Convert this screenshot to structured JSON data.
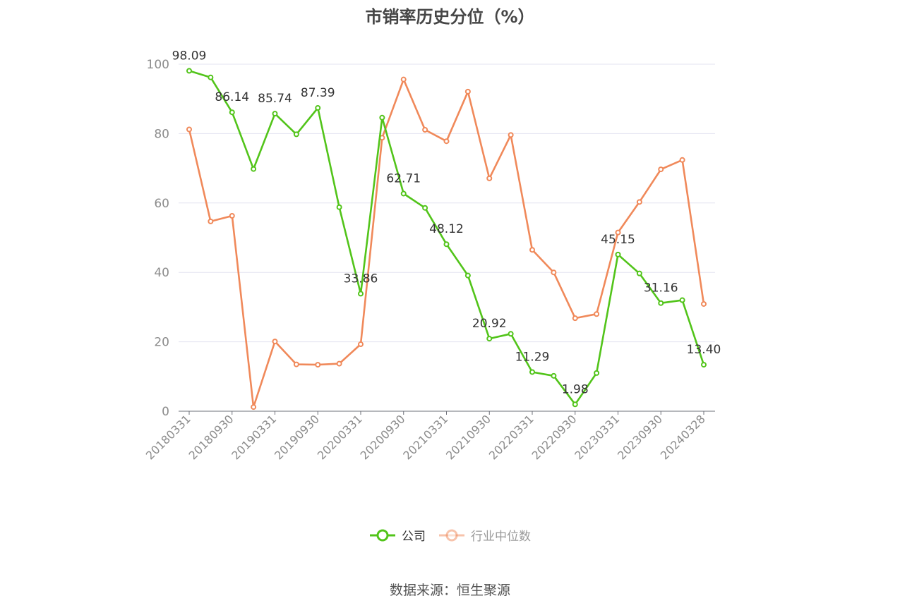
{
  "chart_data": {
    "type": "line",
    "title": "市销率历史分位（%）",
    "x": [
      "20180331",
      "20180630",
      "20180930",
      "20181231",
      "20190331",
      "20190630",
      "20190930",
      "20191231",
      "20200331",
      "20200630",
      "20200930",
      "20201231",
      "20210331",
      "20210630",
      "20210930",
      "20211231",
      "20220331",
      "20220630",
      "20220930",
      "20221231",
      "20230331",
      "20230630",
      "20230930",
      "20231231",
      "20240328"
    ],
    "x_tick_labels": [
      "20180331",
      "20180930",
      "20190331",
      "20190930",
      "20200331",
      "20200930",
      "20210331",
      "20210930",
      "20220331",
      "20220930",
      "20230331",
      "20230930",
      "20240328"
    ],
    "y_ticks": [
      0,
      20,
      40,
      60,
      80,
      100
    ],
    "ylim": [
      0,
      100
    ],
    "grid": true,
    "legend_position": "bottom-center",
    "series": [
      {
        "name": "公司",
        "color": "#52c41a",
        "values": [
          98.09,
          96.2,
          86.14,
          69.8,
          85.74,
          79.8,
          87.39,
          58.8,
          33.86,
          84.6,
          62.71,
          58.6,
          48.12,
          39.1,
          20.92,
          22.3,
          11.29,
          10.2,
          1.98,
          11.0,
          45.15,
          39.7,
          31.16,
          32.0,
          13.4
        ],
        "labeled_points": [
          {
            "x": "20180331",
            "label": "98.09"
          },
          {
            "x": "20180930",
            "label": "86.14"
          },
          {
            "x": "20190331",
            "label": "85.74"
          },
          {
            "x": "20190930",
            "label": "87.39"
          },
          {
            "x": "20200331",
            "label": "33.86"
          },
          {
            "x": "20200930",
            "label": "62.71"
          },
          {
            "x": "20210331",
            "label": "48.12"
          },
          {
            "x": "20210930",
            "label": "20.92"
          },
          {
            "x": "20220331",
            "label": "11.29"
          },
          {
            "x": "20220930",
            "label": "1.98"
          },
          {
            "x": "20230331",
            "label": "45.15"
          },
          {
            "x": "20230930",
            "label": "31.16"
          },
          {
            "x": "20240328",
            "label": "13.40"
          }
        ]
      },
      {
        "name": "行业中位数",
        "color": "#f0895a",
        "values": [
          81.2,
          54.7,
          56.3,
          1.2,
          20.1,
          13.5,
          13.4,
          13.7,
          19.3,
          78.8,
          95.6,
          81.1,
          77.8,
          92.1,
          67.1,
          79.6,
          46.5,
          40.0,
          26.8,
          28.0,
          51.5,
          60.3,
          69.7,
          72.4,
          30.9
        ]
      }
    ]
  },
  "source_note": "数据来源：恒生聚源"
}
